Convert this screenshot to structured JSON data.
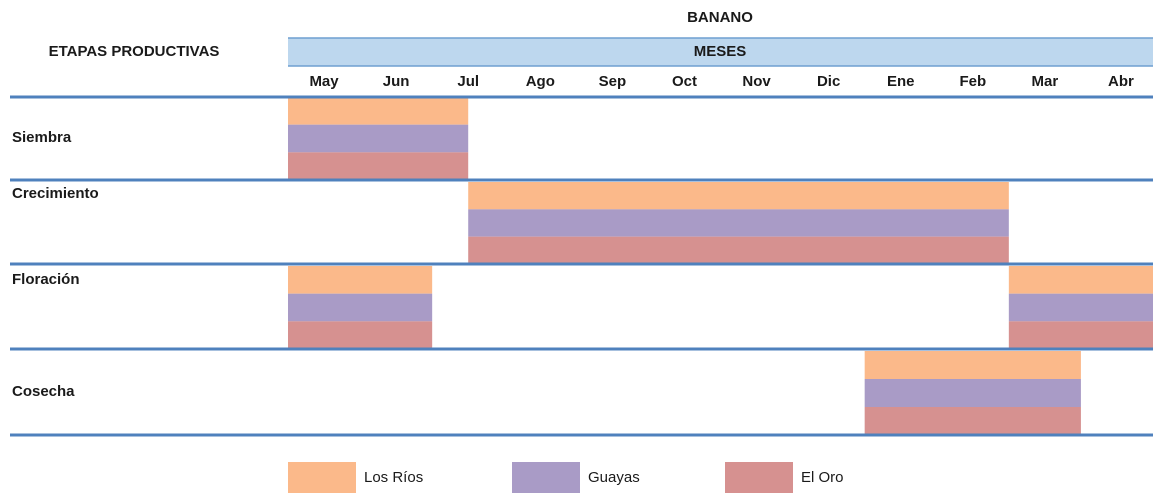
{
  "chart_data": {
    "type": "gantt",
    "title": "BANANO",
    "subtitle": "MESES",
    "row_header": "ETAPAS PRODUCTIVAS",
    "categories": [
      "May",
      "Jun",
      "Jul",
      "Ago",
      "Sep",
      "Oct",
      "Nov",
      "Dic",
      "Ene",
      "Feb",
      "Mar",
      "Abr"
    ],
    "series": [
      {
        "name": "Los Ríos",
        "color": "#fbb98a"
      },
      {
        "name": "Guayas",
        "color": "#a99bc6"
      },
      {
        "name": "El Oro",
        "color": "#d69190"
      }
    ],
    "tasks": [
      {
        "name": "Siembra",
        "spans": [
          [
            0,
            2.5
          ]
        ]
      },
      {
        "name": "Crecimiento",
        "spans": [
          [
            2.5,
            10
          ]
        ]
      },
      {
        "name": "Floración",
        "spans": [
          [
            0,
            2
          ],
          [
            10,
            12
          ]
        ]
      },
      {
        "name": "Cosecha",
        "spans": [
          [
            8,
            11
          ]
        ]
      }
    ]
  }
}
